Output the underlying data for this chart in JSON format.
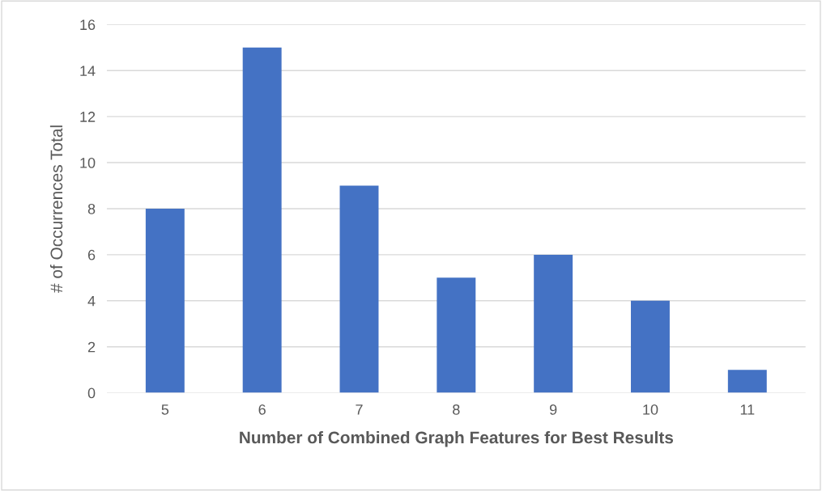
{
  "chart_data": {
    "type": "bar",
    "xlabel": "Number of Combined Graph Features for Best Results",
    "ylabel": "# of Occurrences Total",
    "categories": [
      "5",
      "6",
      "7",
      "8",
      "9",
      "10",
      "11"
    ],
    "values": [
      8,
      15,
      9,
      5,
      6,
      4,
      1
    ],
    "color": "#4472c4",
    "ylim": [
      0,
      16
    ],
    "yticks": [
      0,
      2,
      4,
      6,
      8,
      10,
      12,
      14,
      16
    ],
    "grid": "y",
    "legend": false
  }
}
